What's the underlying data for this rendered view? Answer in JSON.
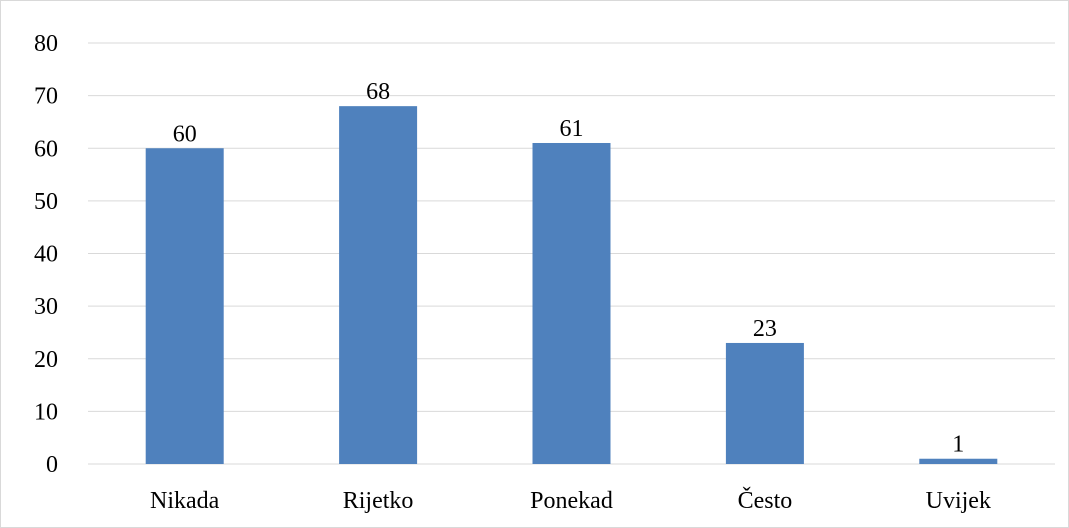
{
  "chart_data": {
    "type": "bar",
    "title": "",
    "xlabel": "",
    "ylabel": "",
    "categories": [
      "Nikada",
      "Rijetko",
      "Ponekad",
      "Često",
      "Uvijek"
    ],
    "values": [
      60,
      68,
      61,
      23,
      1
    ],
    "data_labels": [
      "60",
      "68",
      "61",
      "23",
      "1"
    ],
    "ylim": [
      0,
      80
    ],
    "yticks": [
      "0",
      "10",
      "20",
      "30",
      "40",
      "50",
      "60",
      "70",
      "80"
    ],
    "grid": true,
    "legend": "none",
    "colors": {
      "bar": "#4f81bd",
      "grid": "#d9d9d9",
      "axis": "#d9d9d9",
      "text": "#000000"
    }
  }
}
